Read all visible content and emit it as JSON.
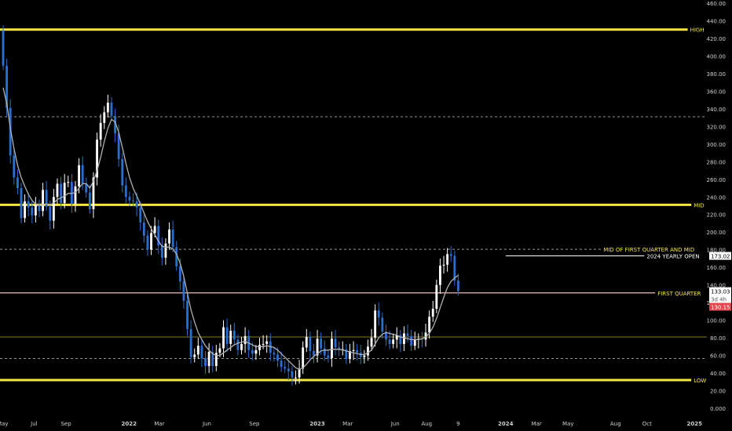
{
  "chart_data": {
    "type": "candlestick",
    "title": "",
    "xlabel": "",
    "ylabel": "",
    "ylim": [
      0,
      460
    ],
    "x_range": [
      "2021-04-26",
      "2025-01-25"
    ],
    "grid": false,
    "legend": "none",
    "colors": {
      "background": "#000000",
      "up": "#ffffff",
      "down": "#2a6fcf",
      "level_yellow": "#f5e642",
      "level_gold": "#8a7a2a",
      "level_dashed": "#c8c8c8",
      "ma": "#b0b0b0",
      "axis_text": "#cfcfcf",
      "red_label": "#e0464e",
      "first_quarter_line": "#f0b8b8"
    },
    "y_ticks": [
      {
        "value": 0,
        "label": "0.000"
      },
      {
        "value": 20,
        "label": "20.00"
      },
      {
        "value": 40,
        "label": "40.00"
      },
      {
        "value": 60,
        "label": "60.00"
      },
      {
        "value": 80,
        "label": "80.00"
      },
      {
        "value": 100,
        "label": "100.00"
      },
      {
        "value": 120,
        "label": "120.00"
      },
      {
        "value": 140,
        "label": "140.00"
      },
      {
        "value": 160,
        "label": "160.00"
      },
      {
        "value": 180,
        "label": "180.00"
      },
      {
        "value": 200,
        "label": "200.00"
      },
      {
        "value": 220,
        "label": "220.00"
      },
      {
        "value": 240,
        "label": "240.00"
      },
      {
        "value": 260,
        "label": "260.00"
      },
      {
        "value": 280,
        "label": "280.00"
      },
      {
        "value": 300,
        "label": "300.00"
      },
      {
        "value": 320,
        "label": "320.00"
      },
      {
        "value": 340,
        "label": "340.00"
      },
      {
        "value": 360,
        "label": "360.00"
      },
      {
        "value": 380,
        "label": "380.00"
      },
      {
        "value": 400,
        "label": "400.00"
      },
      {
        "value": 420,
        "label": "420.00"
      },
      {
        "value": 440,
        "label": "440.00"
      },
      {
        "value": 460,
        "label": "460.00"
      }
    ],
    "x_ticks": [
      {
        "date": "2021-05-01",
        "label": "May",
        "bold": false
      },
      {
        "date": "2021-07-01",
        "label": "Jul",
        "bold": false
      },
      {
        "date": "2021-09-01",
        "label": "Sep",
        "bold": false
      },
      {
        "date": "2022-01-01",
        "label": "2022",
        "bold": true
      },
      {
        "date": "2022-03-01",
        "label": "Mar",
        "bold": false
      },
      {
        "date": "2022-06-01",
        "label": "Jun",
        "bold": false
      },
      {
        "date": "2022-09-01",
        "label": "Sep",
        "bold": false
      },
      {
        "date": "2023-01-01",
        "label": "2023",
        "bold": true
      },
      {
        "date": "2023-03-01",
        "label": "Mar",
        "bold": false
      },
      {
        "date": "2023-06-01",
        "label": "Jun",
        "bold": false
      },
      {
        "date": "2023-08-01",
        "label": "Aug",
        "bold": false
      },
      {
        "date": "2023-10-01",
        "label": "9",
        "bold": false
      },
      {
        "date": "2024-01-01",
        "label": "2024",
        "bold": true
      },
      {
        "date": "2024-03-01",
        "label": "Mar",
        "bold": false
      },
      {
        "date": "2024-05-01",
        "label": "May",
        "bold": false
      },
      {
        "date": "2024-08-01",
        "label": "Aug",
        "bold": false
      },
      {
        "date": "2024-10-01",
        "label": "Oct",
        "bold": false
      },
      {
        "date": "2025-01-01",
        "label": "2025",
        "bold": true
      }
    ],
    "levels": [
      {
        "value": 430,
        "style": "yellow",
        "label": "HIGH",
        "label_pos": "right"
      },
      {
        "value": 331,
        "style": "dashed",
        "label": "",
        "label_pos": ""
      },
      {
        "value": 231,
        "style": "yellow",
        "label": "MID",
        "label_pos": "right"
      },
      {
        "value": 180.5,
        "style": "dashed",
        "label": "MID OF FIRST QUARTER AND MID",
        "label_pos": "right"
      },
      {
        "value": 173.02,
        "style": "white_thin",
        "label": "2024 YEARLY OPEN",
        "label_pos": "right",
        "start": "2024-01-01"
      },
      {
        "value": 131,
        "style": "first_quarter",
        "label": "FIRST QUARTER",
        "label_pos": "right"
      },
      {
        "value": 81,
        "style": "gold",
        "label": "",
        "label_pos": ""
      },
      {
        "value": 56.5,
        "style": "dashed",
        "label": "",
        "label_pos": ""
      },
      {
        "value": 32,
        "style": "yellow",
        "label": "LOW",
        "label_pos": "right"
      }
    ],
    "price_labels": {
      "yearly_open": "173.02",
      "last_price": "133.03",
      "countdown": "3d 4h",
      "red_price": "130.15"
    },
    "x_step_days": 7,
    "close": [
      389,
      341,
      287,
      262,
      250,
      216,
      235,
      228,
      219,
      231,
      224,
      248,
      229,
      213,
      240,
      255,
      233,
      256,
      257,
      232,
      252,
      276,
      255,
      245,
      226,
      262,
      305,
      324,
      336,
      347,
      332,
      312,
      283,
      253,
      240,
      236,
      235,
      228,
      211,
      196,
      180,
      199,
      207,
      185,
      171,
      187,
      203,
      183,
      161,
      144,
      122,
      90,
      58,
      61,
      71,
      57,
      48,
      64,
      48,
      63,
      68,
      92,
      73,
      88,
      78,
      66,
      73,
      82,
      66,
      62,
      66,
      72,
      73,
      76,
      63,
      61,
      54,
      47,
      45,
      42,
      35,
      35,
      45,
      69,
      81,
      65,
      60,
      79,
      68,
      60,
      57,
      79,
      69,
      67,
      67,
      56,
      65,
      66,
      63,
      58,
      60,
      70,
      80,
      111,
      103,
      87,
      78,
      73,
      78,
      83,
      73,
      85,
      82,
      71,
      78,
      79,
      78,
      86,
      104,
      113,
      140,
      162,
      163,
      175,
      173,
      145,
      133
    ],
    "ma": [
      364,
      346,
      318,
      295,
      276,
      262,
      252,
      243,
      236,
      232,
      230,
      231,
      232,
      231,
      233,
      237,
      239,
      241,
      244,
      244,
      245,
      250,
      255,
      255,
      250,
      258,
      270,
      285,
      303,
      318,
      328,
      325,
      313,
      296,
      278,
      262,
      250,
      241,
      232,
      222,
      212,
      204,
      197,
      190,
      184,
      183,
      183,
      181,
      175,
      165,
      150,
      131,
      112,
      98,
      86,
      78,
      71,
      66,
      62,
      60,
      60,
      63,
      66,
      69,
      72,
      74,
      75,
      76,
      74,
      72,
      70,
      70,
      70,
      71,
      70,
      69,
      66,
      62,
      58,
      54,
      50,
      46,
      44,
      46,
      50,
      55,
      59,
      62,
      65,
      66,
      66,
      67,
      67,
      67,
      66,
      65,
      64,
      63,
      62,
      61,
      61,
      63,
      66,
      73,
      80,
      84,
      86,
      85,
      84,
      83,
      81,
      80,
      79,
      78,
      78,
      78,
      79,
      81,
      85,
      92,
      102,
      114,
      126,
      137,
      144,
      148,
      151
    ]
  }
}
